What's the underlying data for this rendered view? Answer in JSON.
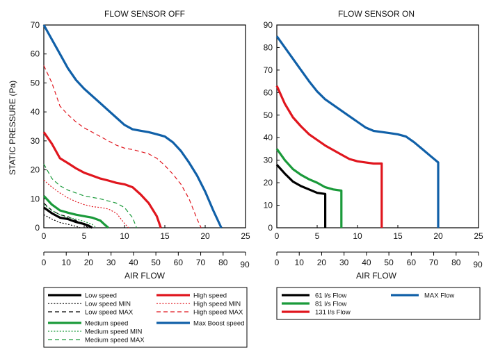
{
  "chart_data": [
    {
      "type": "line",
      "title": "FLOW SENSOR OFF",
      "ylabel": "STATIC PRESSURE (Pa)",
      "xlabel": "AIR FLOW",
      "xlim": [
        0,
        25
      ],
      "ylim": [
        0,
        70
      ],
      "x_ticks": [
        0,
        5,
        10,
        15,
        20,
        25
      ],
      "y_ticks": [
        0,
        10,
        20,
        30,
        40,
        50,
        60,
        70
      ],
      "grid": false,
      "secondary_x_axis": {
        "ticks": [
          0,
          10,
          20,
          30,
          40,
          50,
          60,
          70,
          80,
          90
        ],
        "max": 90
      },
      "series": [
        {
          "name": "Low speed",
          "color": "#000000",
          "dash": "solid",
          "width": "thick",
          "x": [
            0,
            1,
            2,
            3,
            4,
            5,
            5.5,
            6
          ],
          "y": [
            7,
            5,
            3.5,
            3,
            2,
            1.3,
            0.8,
            0
          ]
        },
        {
          "name": "Low speed MIN",
          "color": "#000000",
          "dash": "dot",
          "width": "thin",
          "x": [
            0,
            1,
            2,
            3,
            4,
            4.5
          ],
          "y": [
            4.5,
            3,
            1.8,
            1.2,
            0.5,
            0
          ]
        },
        {
          "name": "Low speed MAX",
          "color": "#000000",
          "dash": "dash",
          "width": "thin",
          "x": [
            0,
            1,
            2,
            3,
            4,
            5,
            5.5
          ],
          "y": [
            8.5,
            6,
            4.5,
            3.8,
            2.5,
            1,
            0
          ]
        },
        {
          "name": "Medium speed",
          "color": "#1a9a3a",
          "dash": "solid",
          "width": "thick",
          "x": [
            0,
            1,
            2,
            3,
            4,
            5,
            6,
            7,
            7.5,
            8
          ],
          "y": [
            11,
            8,
            6,
            5.2,
            4.5,
            4,
            3.5,
            2.5,
            1.2,
            0
          ]
        },
        {
          "name": "Medium speed MIN",
          "color": "#1a9a3a",
          "dash": "dot",
          "width": "thin",
          "x": [
            0,
            1,
            2,
            3,
            4,
            5,
            6,
            6.5
          ],
          "y": [
            8,
            6,
            4.5,
            3.5,
            3,
            2.2,
            1.2,
            0
          ]
        },
        {
          "name": "Medium speed MAX",
          "color": "#1a9a3a",
          "dash": "dash",
          "width": "thin",
          "x": [
            0,
            1,
            2,
            3,
            4,
            5,
            7,
            9,
            10,
            11,
            11.5
          ],
          "y": [
            22,
            17,
            14.5,
            13,
            12,
            11,
            10,
            8.5,
            7,
            3.5,
            0
          ]
        },
        {
          "name": "High speed",
          "color": "#e0161e",
          "dash": "solid",
          "width": "thick",
          "x": [
            0,
            1,
            2,
            3,
            4,
            5,
            6,
            7,
            8,
            9,
            10,
            11,
            12,
            13,
            14,
            14.5
          ],
          "y": [
            33,
            29,
            24,
            22.3,
            20.5,
            19,
            18,
            17,
            16.3,
            15.5,
            15,
            14,
            11.5,
            8.5,
            4,
            0
          ]
        },
        {
          "name": "High speed MIN",
          "color": "#e0161e",
          "dash": "dot",
          "width": "thin",
          "x": [
            0,
            1,
            2,
            3,
            4,
            5,
            6,
            7,
            8,
            9,
            10,
            10.5
          ],
          "y": [
            16.5,
            14,
            12,
            10.3,
            9,
            8,
            7.3,
            7,
            6.5,
            5,
            1.5,
            0
          ]
        },
        {
          "name": "High speed MAX",
          "color": "#e0161e",
          "dash": "dash",
          "width": "thin",
          "x": [
            0,
            1,
            2,
            3,
            4,
            5,
            6,
            7,
            8,
            9,
            10,
            11,
            12,
            13,
            14,
            15,
            16,
            17,
            18,
            19,
            19.5
          ],
          "y": [
            56,
            50,
            42,
            39,
            36.5,
            34.5,
            33,
            31.5,
            30,
            28.5,
            27.5,
            27,
            26.3,
            25.5,
            24,
            21.5,
            18.5,
            15,
            10,
            3,
            0
          ]
        },
        {
          "name": "Max Boost speed",
          "color": "#1060a8",
          "dash": "solid",
          "width": "thick",
          "x": [
            0,
            1,
            2,
            3,
            4,
            5,
            6,
            7,
            8,
            9,
            10,
            11,
            12,
            13,
            14,
            15,
            16,
            17,
            18,
            19,
            20,
            21,
            22
          ],
          "y": [
            70,
            65,
            60,
            55,
            51,
            48,
            45.5,
            43,
            40.5,
            38,
            35.5,
            34,
            33.5,
            33,
            32.3,
            31.5,
            29.5,
            26.5,
            22.5,
            18,
            12.5,
            6,
            0
          ]
        }
      ]
    },
    {
      "type": "line",
      "title": "FLOW SENSOR ON",
      "xlabel": "AIR FLOW",
      "xlim": [
        0,
        25
      ],
      "ylim": [
        0,
        90
      ],
      "x_ticks": [
        0,
        5,
        10,
        15,
        20,
        25
      ],
      "y_ticks": [
        0,
        10,
        20,
        30,
        40,
        50,
        60,
        70,
        80,
        90
      ],
      "grid": false,
      "secondary_x_axis": {
        "ticks": [
          0,
          10,
          20,
          30,
          40,
          50,
          60,
          70,
          80,
          90
        ],
        "max": 90
      },
      "series": [
        {
          "name": "61 l/s Flow",
          "color": "#000000",
          "dash": "solid",
          "width": "thick",
          "x": [
            0,
            1,
            2,
            3,
            4,
            5,
            6,
            6,
            6
          ],
          "y": [
            28,
            24,
            20.5,
            18.5,
            17,
            15.5,
            15,
            7,
            0
          ]
        },
        {
          "name": "81 l/s Flow",
          "color": "#1a9a3a",
          "dash": "solid",
          "width": "thick",
          "x": [
            0,
            1,
            2,
            3,
            4,
            5,
            6,
            7,
            8,
            8,
            8
          ],
          "y": [
            35,
            30,
            26,
            23.5,
            21.5,
            20,
            18,
            17,
            16.5,
            8,
            0
          ]
        },
        {
          "name": "131 l/s Flow",
          "color": "#e0161e",
          "dash": "solid",
          "width": "thick",
          "x": [
            0,
            1,
            2,
            3,
            4,
            5,
            6,
            7,
            8,
            9,
            10,
            11,
            12,
            13,
            13,
            13
          ],
          "y": [
            63,
            55,
            49,
            45,
            41.5,
            39,
            36.5,
            34.5,
            32.5,
            30.5,
            29.5,
            29,
            28.5,
            28.5,
            14,
            0
          ]
        },
        {
          "name": "MAX Flow",
          "color": "#1060a8",
          "dash": "solid",
          "width": "thick",
          "x": [
            0,
            1,
            2,
            3,
            4,
            5,
            6,
            7,
            8,
            9,
            10,
            11,
            12,
            13,
            14,
            15,
            16,
            17,
            18,
            19,
            20,
            20,
            20
          ],
          "y": [
            85,
            80,
            75,
            70,
            65,
            60.5,
            57,
            54.5,
            52,
            49.5,
            47,
            44.5,
            43,
            42.5,
            42,
            41.5,
            40.5,
            38,
            35,
            32,
            29,
            15,
            0
          ]
        }
      ]
    }
  ]
}
